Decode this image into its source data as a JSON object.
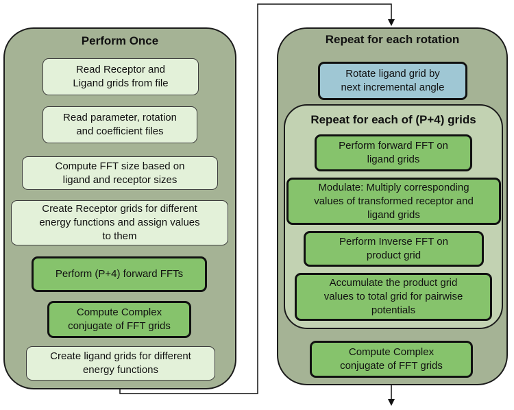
{
  "left_panel": {
    "title": "Perform Once",
    "steps": [
      {
        "line1": "Read Receptor and",
        "line2": "Ligand grids from file",
        "line3": ""
      },
      {
        "line1": "Read parameter, rotation",
        "line2": "and coefficient files",
        "line3": ""
      },
      {
        "line1": "Compute FFT size based on",
        "line2": "ligand and receptor sizes",
        "line3": ""
      },
      {
        "line1": "Create Receptor grids for different",
        "line2": "energy functions and assign values",
        "line3": "to them"
      },
      {
        "line1": "Perform (P+4) forward FFTs",
        "line2": "",
        "line3": ""
      },
      {
        "line1": "Compute Complex",
        "line2": "conjugate of FFT grids",
        "line3": ""
      },
      {
        "line1": "Create ligand grids for different",
        "line2": "energy functions",
        "line3": ""
      }
    ]
  },
  "right_panel": {
    "title": "Repeat for each rotation",
    "rotate_step": {
      "line1": "Rotate ligand grid by",
      "line2": "next incremental angle"
    },
    "inner_title": "Repeat for each of (P+4) grids",
    "inner_steps": [
      {
        "line1": "Perform forward FFT on",
        "line2": "ligand grids",
        "line3": ""
      },
      {
        "line1": "Modulate: Multiply corresponding",
        "line2": "values of transformed receptor and",
        "line3": "ligand grids"
      },
      {
        "line1": "Perform Inverse FFT on",
        "line2": "product grid",
        "line3": ""
      },
      {
        "line1": "Accumulate the product grid",
        "line2": "values to total grid for pairwise",
        "line3": "potentials"
      }
    ],
    "final_step": {
      "line1": "Compute Complex",
      "line2": "conjugate of FFT grids"
    }
  },
  "colors": {
    "outer_panel": "#a5b395",
    "inner_panel": "#c2d2b2",
    "light_step": "#e3f1d9",
    "green_step": "#86c36c",
    "blue_step": "#9fc7d4"
  }
}
